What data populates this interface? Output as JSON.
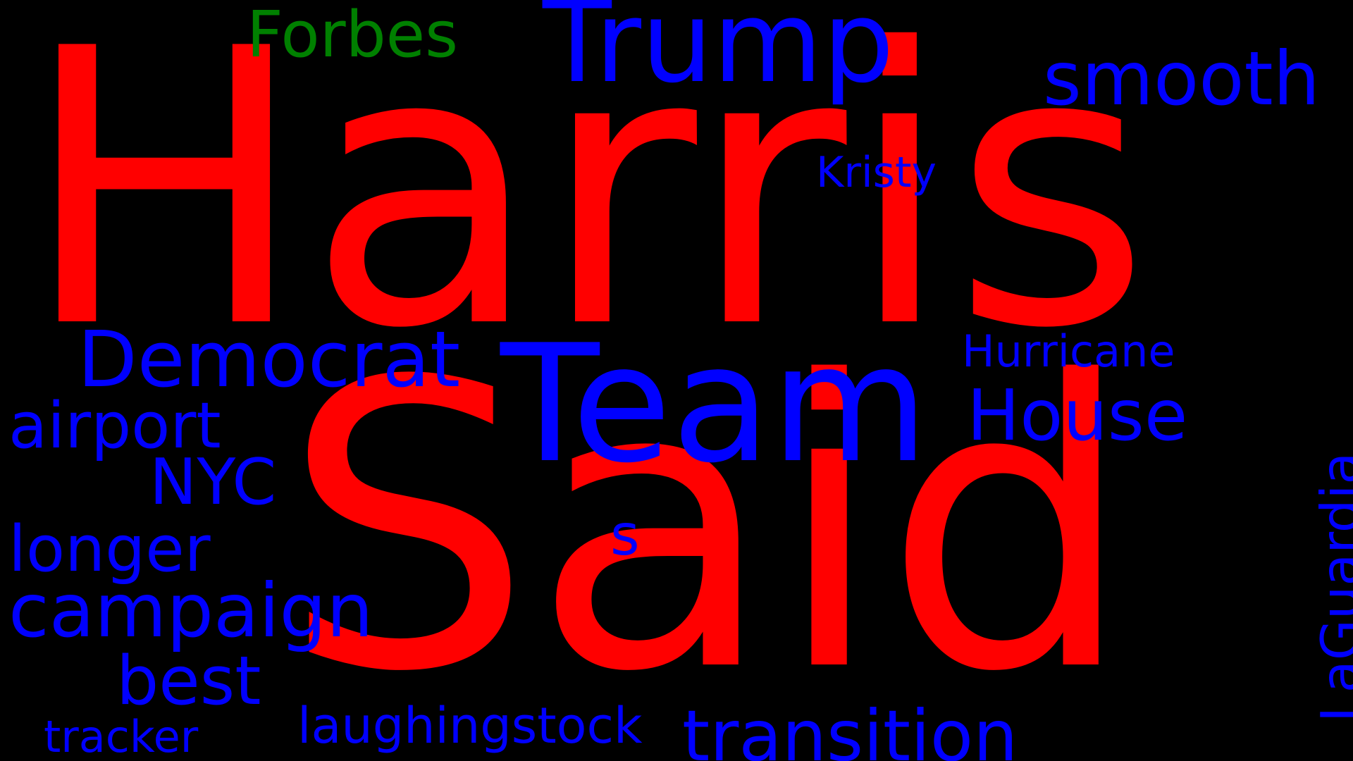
{
  "colors": {
    "background": "#000000",
    "primary": "#ff0000",
    "secondary": "#0000ff",
    "accent": "#008000"
  },
  "words": {
    "harris": "Harris",
    "said": "Said",
    "team": "Team",
    "trump": "Trump",
    "forbes": "Forbes",
    "smooth": "smooth",
    "kristy": "Kristy",
    "democrat": "Democrat",
    "hurricane": "Hurricane",
    "house": "House",
    "airport": "airport",
    "nyc": "NYC",
    "laguardia": "LaGuardia",
    "s": "s",
    "longer": "longer",
    "campaign": "campaign",
    "best": "best",
    "tracker": "tracker",
    "laughingstock": "laughingstock",
    "transition": "transition"
  }
}
